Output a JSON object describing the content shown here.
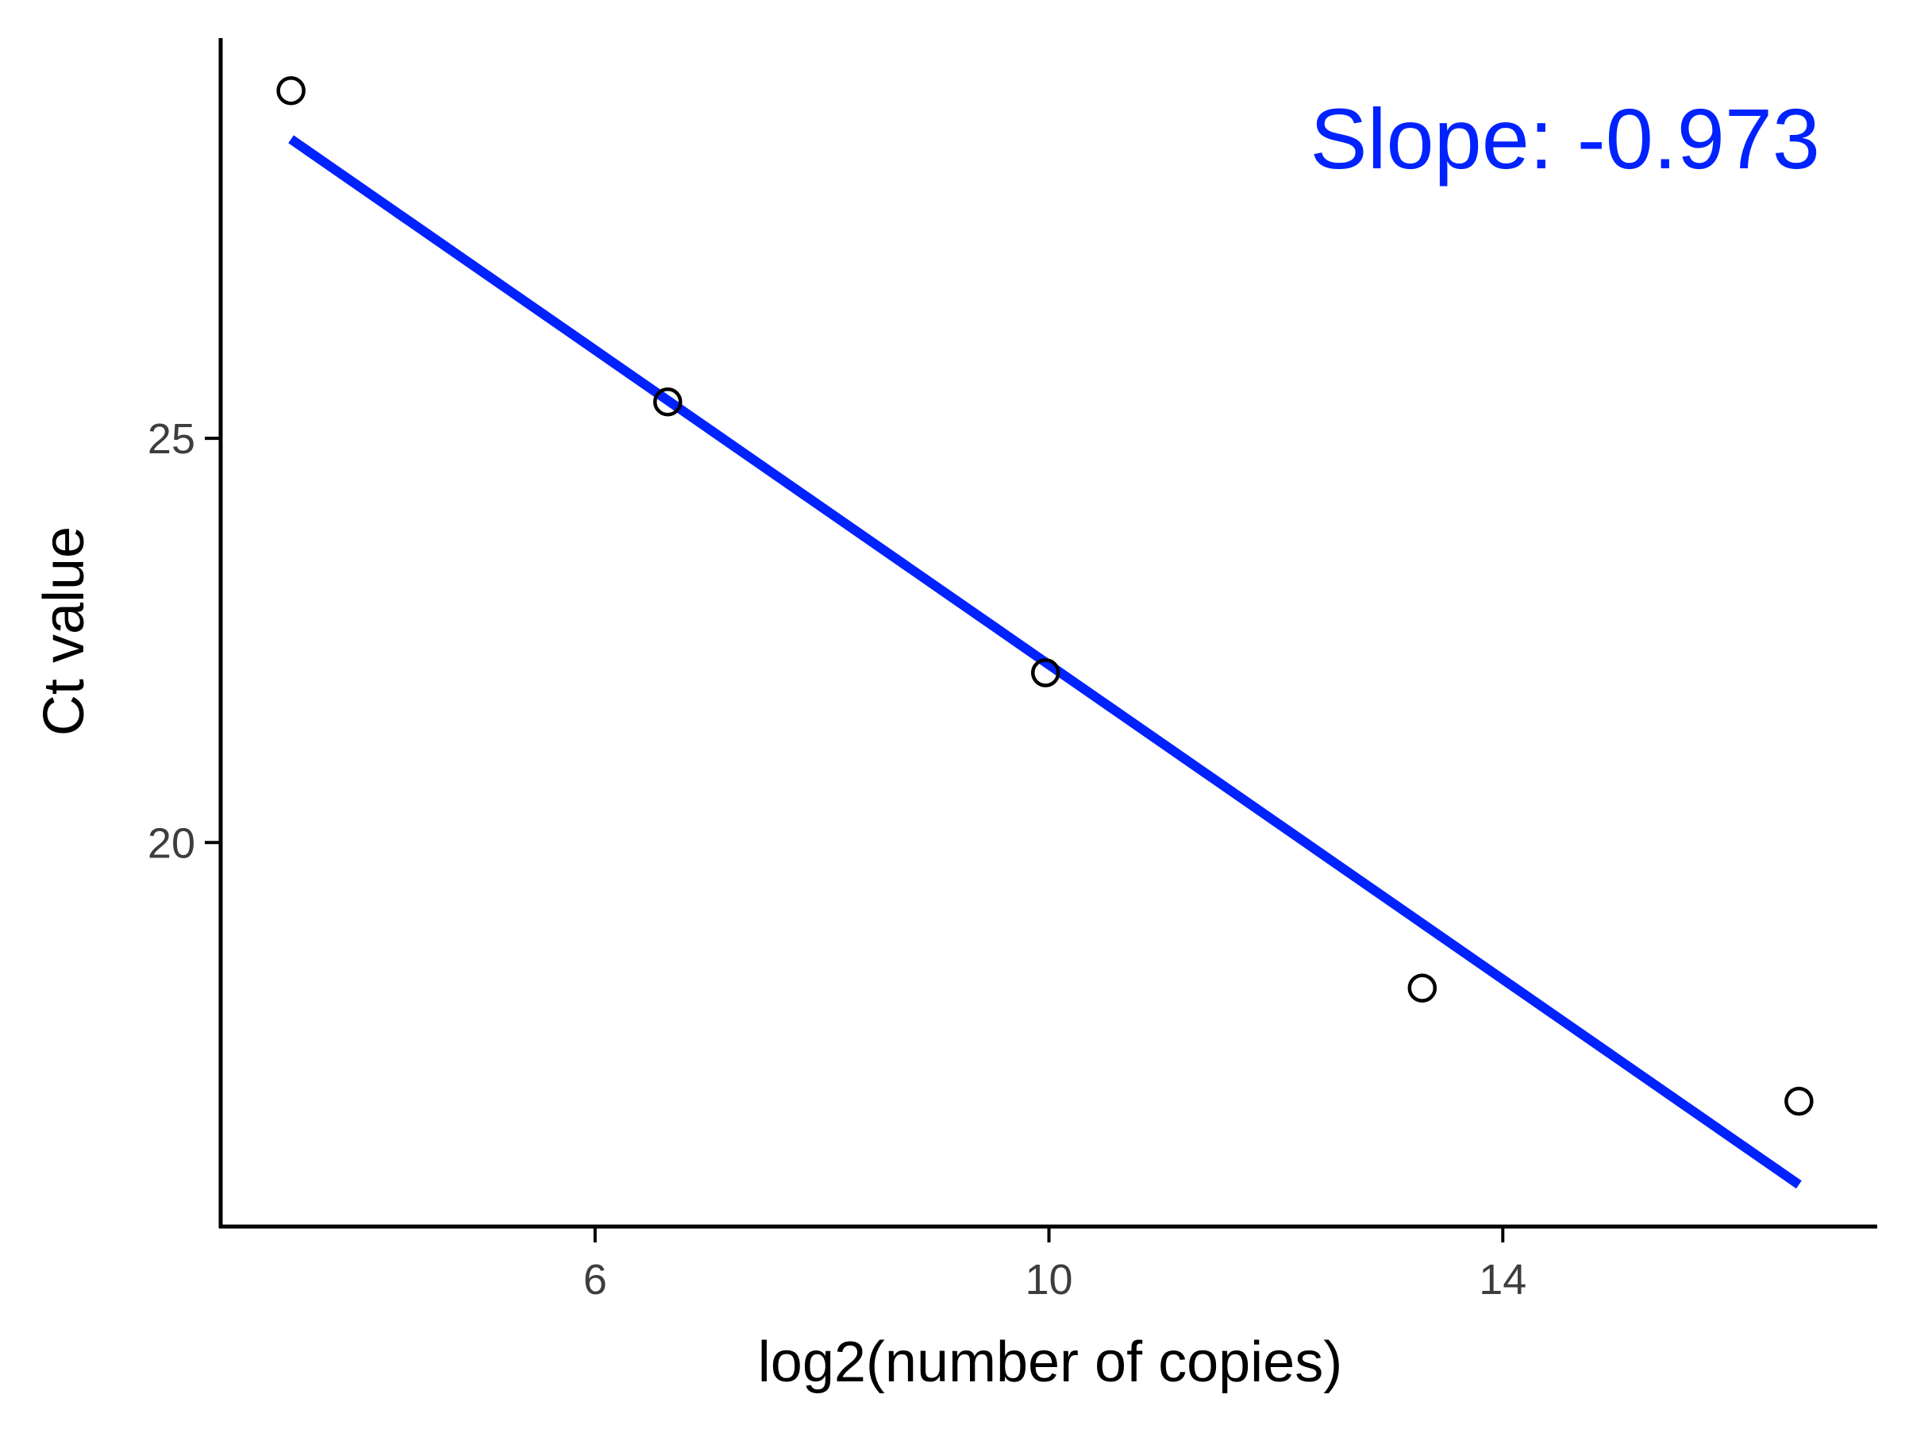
{
  "chart_data": {
    "type": "scatter",
    "xlabel": "log2(number of copies)",
    "ylabel": "Ct value",
    "x_ticks": [
      6,
      10,
      14
    ],
    "y_ticks": [
      20,
      25
    ],
    "xlim": [
      2.7,
      17.3
    ],
    "ylim": [
      15.25,
      29.95
    ],
    "grid": false,
    "points": [
      {
        "x": 3.32,
        "y": 29.3
      },
      {
        "x": 6.64,
        "y": 25.45
      },
      {
        "x": 9.97,
        "y": 22.1
      },
      {
        "x": 13.29,
        "y": 18.2
      },
      {
        "x": 16.61,
        "y": 16.8
      }
    ],
    "fit_line": {
      "slope": -0.973,
      "intercept": 31.93,
      "x_range": [
        3.32,
        16.61
      ]
    },
    "annotation": {
      "text": "Slope: -0.973",
      "placement": "top-right"
    },
    "colors": {
      "fit_line": "#0022ff",
      "annotation": "#0022ff",
      "points": "#000000"
    }
  }
}
